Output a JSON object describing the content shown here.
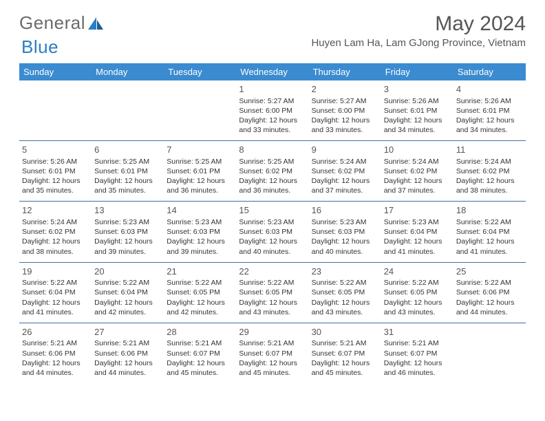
{
  "logo": {
    "part1": "General",
    "part2": "Blue"
  },
  "title": "May 2024",
  "location": "Huyen Lam Ha, Lam GJong Province, Vietnam",
  "colors": {
    "header_bg": "#3a8bd0",
    "header_text": "#ffffff",
    "row_border": "#3a6fa8",
    "day_num": "#555555",
    "body_text": "#333333",
    "title_text": "#555555",
    "logo_gray": "#6b6b6b",
    "logo_blue": "#2b7dc4",
    "page_bg": "#ffffff"
  },
  "weekdays": [
    "Sunday",
    "Monday",
    "Tuesday",
    "Wednesday",
    "Thursday",
    "Friday",
    "Saturday"
  ],
  "weeks": [
    [
      null,
      null,
      null,
      {
        "n": "1",
        "sr": "5:27 AM",
        "ss": "6:00 PM",
        "dh": "12",
        "dm": "33"
      },
      {
        "n": "2",
        "sr": "5:27 AM",
        "ss": "6:00 PM",
        "dh": "12",
        "dm": "33"
      },
      {
        "n": "3",
        "sr": "5:26 AM",
        "ss": "6:01 PM",
        "dh": "12",
        "dm": "34"
      },
      {
        "n": "4",
        "sr": "5:26 AM",
        "ss": "6:01 PM",
        "dh": "12",
        "dm": "34"
      }
    ],
    [
      {
        "n": "5",
        "sr": "5:26 AM",
        "ss": "6:01 PM",
        "dh": "12",
        "dm": "35"
      },
      {
        "n": "6",
        "sr": "5:25 AM",
        "ss": "6:01 PM",
        "dh": "12",
        "dm": "35"
      },
      {
        "n": "7",
        "sr": "5:25 AM",
        "ss": "6:01 PM",
        "dh": "12",
        "dm": "36"
      },
      {
        "n": "8",
        "sr": "5:25 AM",
        "ss": "6:02 PM",
        "dh": "12",
        "dm": "36"
      },
      {
        "n": "9",
        "sr": "5:24 AM",
        "ss": "6:02 PM",
        "dh": "12",
        "dm": "37"
      },
      {
        "n": "10",
        "sr": "5:24 AM",
        "ss": "6:02 PM",
        "dh": "12",
        "dm": "37"
      },
      {
        "n": "11",
        "sr": "5:24 AM",
        "ss": "6:02 PM",
        "dh": "12",
        "dm": "38"
      }
    ],
    [
      {
        "n": "12",
        "sr": "5:24 AM",
        "ss": "6:02 PM",
        "dh": "12",
        "dm": "38"
      },
      {
        "n": "13",
        "sr": "5:23 AM",
        "ss": "6:03 PM",
        "dh": "12",
        "dm": "39"
      },
      {
        "n": "14",
        "sr": "5:23 AM",
        "ss": "6:03 PM",
        "dh": "12",
        "dm": "39"
      },
      {
        "n": "15",
        "sr": "5:23 AM",
        "ss": "6:03 PM",
        "dh": "12",
        "dm": "40"
      },
      {
        "n": "16",
        "sr": "5:23 AM",
        "ss": "6:03 PM",
        "dh": "12",
        "dm": "40"
      },
      {
        "n": "17",
        "sr": "5:23 AM",
        "ss": "6:04 PM",
        "dh": "12",
        "dm": "41"
      },
      {
        "n": "18",
        "sr": "5:22 AM",
        "ss": "6:04 PM",
        "dh": "12",
        "dm": "41"
      }
    ],
    [
      {
        "n": "19",
        "sr": "5:22 AM",
        "ss": "6:04 PM",
        "dh": "12",
        "dm": "41"
      },
      {
        "n": "20",
        "sr": "5:22 AM",
        "ss": "6:04 PM",
        "dh": "12",
        "dm": "42"
      },
      {
        "n": "21",
        "sr": "5:22 AM",
        "ss": "6:05 PM",
        "dh": "12",
        "dm": "42"
      },
      {
        "n": "22",
        "sr": "5:22 AM",
        "ss": "6:05 PM",
        "dh": "12",
        "dm": "43"
      },
      {
        "n": "23",
        "sr": "5:22 AM",
        "ss": "6:05 PM",
        "dh": "12",
        "dm": "43"
      },
      {
        "n": "24",
        "sr": "5:22 AM",
        "ss": "6:05 PM",
        "dh": "12",
        "dm": "43"
      },
      {
        "n": "25",
        "sr": "5:22 AM",
        "ss": "6:06 PM",
        "dh": "12",
        "dm": "44"
      }
    ],
    [
      {
        "n": "26",
        "sr": "5:21 AM",
        "ss": "6:06 PM",
        "dh": "12",
        "dm": "44"
      },
      {
        "n": "27",
        "sr": "5:21 AM",
        "ss": "6:06 PM",
        "dh": "12",
        "dm": "44"
      },
      {
        "n": "28",
        "sr": "5:21 AM",
        "ss": "6:07 PM",
        "dh": "12",
        "dm": "45"
      },
      {
        "n": "29",
        "sr": "5:21 AM",
        "ss": "6:07 PM",
        "dh": "12",
        "dm": "45"
      },
      {
        "n": "30",
        "sr": "5:21 AM",
        "ss": "6:07 PM",
        "dh": "12",
        "dm": "45"
      },
      {
        "n": "31",
        "sr": "5:21 AM",
        "ss": "6:07 PM",
        "dh": "12",
        "dm": "46"
      },
      null
    ]
  ],
  "labels": {
    "sunrise": "Sunrise:",
    "sunset": "Sunset:",
    "daylight1": "Daylight:",
    "hours": "hours",
    "and": "and",
    "minutes": "minutes."
  }
}
